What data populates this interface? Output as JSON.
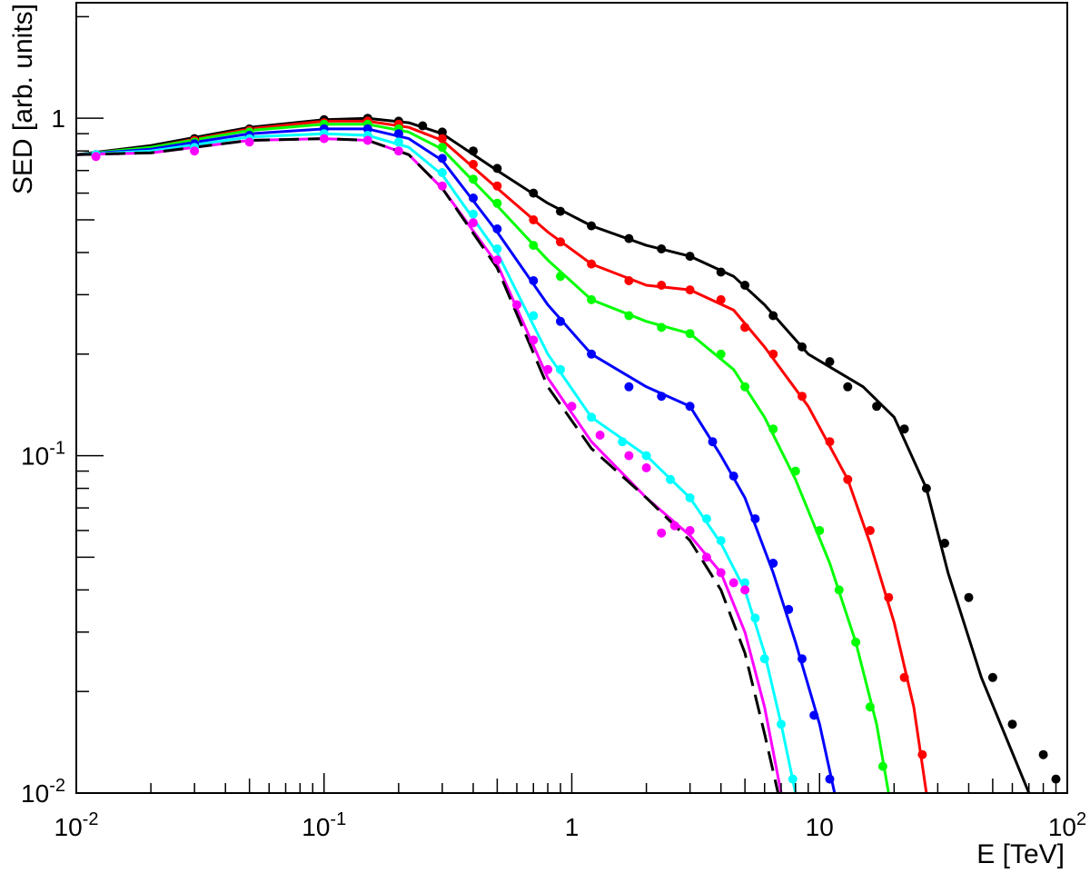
{
  "chart_data": {
    "type": "scatter",
    "xlabel": "E [TeV]",
    "ylabel": "SED [arb. units]",
    "x_scale": "log",
    "y_scale": "log",
    "xlim": [
      0.01,
      100
    ],
    "ylim": [
      0.01,
      2.2
    ],
    "grid": false,
    "legend": "none",
    "x_ticks": [
      {
        "value": 0.01,
        "base": "10",
        "exp": "-2"
      },
      {
        "value": 0.1,
        "base": "10",
        "exp": "-1"
      },
      {
        "value": 1,
        "base": "1",
        "exp": ""
      },
      {
        "value": 10,
        "base": "10",
        "exp": ""
      },
      {
        "value": 100,
        "base": "10",
        "exp": "2"
      }
    ],
    "y_ticks": [
      {
        "value": 0.01,
        "base": "10",
        "exp": "-2"
      },
      {
        "value": 0.1,
        "base": "10",
        "exp": "-1"
      },
      {
        "value": 1,
        "base": "1",
        "exp": ""
      }
    ],
    "series": [
      {
        "color": "#000000",
        "line_style": "solid",
        "curve": [
          [
            0.01,
            0.78
          ],
          [
            0.02,
            0.83
          ],
          [
            0.05,
            0.94
          ],
          [
            0.1,
            0.99
          ],
          [
            0.15,
            1.0
          ],
          [
            0.22,
            0.97
          ],
          [
            0.3,
            0.9
          ],
          [
            0.5,
            0.7
          ],
          [
            0.8,
            0.56
          ],
          [
            1.2,
            0.48
          ],
          [
            2,
            0.42
          ],
          [
            3,
            0.39
          ],
          [
            4.5,
            0.34
          ],
          [
            6,
            0.28
          ],
          [
            9,
            0.2
          ],
          [
            15,
            0.16
          ],
          [
            20,
            0.13
          ],
          [
            27,
            0.08
          ],
          [
            33,
            0.045
          ],
          [
            45,
            0.022
          ],
          [
            70,
            0.01
          ]
        ],
        "points": [
          [
            0.012,
            0.78
          ],
          [
            0.03,
            0.87
          ],
          [
            0.05,
            0.93
          ],
          [
            0.1,
            0.99
          ],
          [
            0.15,
            1.0
          ],
          [
            0.2,
            0.98
          ],
          [
            0.25,
            0.95
          ],
          [
            0.3,
            0.91
          ],
          [
            0.4,
            0.8
          ],
          [
            0.5,
            0.71
          ],
          [
            0.7,
            0.6
          ],
          [
            0.9,
            0.53
          ],
          [
            1.2,
            0.48
          ],
          [
            1.7,
            0.44
          ],
          [
            2.3,
            0.41
          ],
          [
            3,
            0.39
          ],
          [
            4,
            0.35
          ],
          [
            5,
            0.32
          ],
          [
            6.5,
            0.26
          ],
          [
            8.5,
            0.21
          ],
          [
            11,
            0.19
          ],
          [
            13,
            0.16
          ],
          [
            17,
            0.14
          ],
          [
            22,
            0.12
          ],
          [
            27,
            0.08
          ],
          [
            32,
            0.055
          ],
          [
            40,
            0.038
          ],
          [
            50,
            0.022
          ],
          [
            60,
            0.016
          ],
          [
            80,
            0.013
          ],
          [
            90,
            0.011
          ]
        ]
      },
      {
        "color": "#ff0000",
        "line_style": "solid",
        "curve": [
          [
            0.01,
            0.78
          ],
          [
            0.02,
            0.82
          ],
          [
            0.05,
            0.93
          ],
          [
            0.1,
            0.98
          ],
          [
            0.15,
            0.98
          ],
          [
            0.22,
            0.94
          ],
          [
            0.3,
            0.86
          ],
          [
            0.5,
            0.62
          ],
          [
            0.8,
            0.46
          ],
          [
            1.2,
            0.37
          ],
          [
            2,
            0.32
          ],
          [
            3,
            0.31
          ],
          [
            4.5,
            0.27
          ],
          [
            6,
            0.21
          ],
          [
            9,
            0.14
          ],
          [
            13,
            0.085
          ],
          [
            16,
            0.055
          ],
          [
            20,
            0.032
          ],
          [
            24,
            0.018
          ],
          [
            27,
            0.01
          ]
        ],
        "points": [
          [
            0.012,
            0.78
          ],
          [
            0.03,
            0.86
          ],
          [
            0.05,
            0.92
          ],
          [
            0.1,
            0.97
          ],
          [
            0.15,
            0.98
          ],
          [
            0.2,
            0.96
          ],
          [
            0.3,
            0.87
          ],
          [
            0.4,
            0.73
          ],
          [
            0.5,
            0.63
          ],
          [
            0.7,
            0.5
          ],
          [
            0.9,
            0.43
          ],
          [
            1.2,
            0.37
          ],
          [
            1.7,
            0.33
          ],
          [
            2.3,
            0.32
          ],
          [
            3,
            0.31
          ],
          [
            4,
            0.29
          ],
          [
            5,
            0.24
          ],
          [
            6.5,
            0.2
          ],
          [
            8.5,
            0.15
          ],
          [
            11,
            0.11
          ],
          [
            13,
            0.085
          ],
          [
            16,
            0.06
          ],
          [
            19,
            0.038
          ],
          [
            22,
            0.022
          ],
          [
            26,
            0.013
          ]
        ]
      },
      {
        "color": "#00ff00",
        "line_style": "solid",
        "curve": [
          [
            0.01,
            0.78
          ],
          [
            0.02,
            0.82
          ],
          [
            0.05,
            0.92
          ],
          [
            0.1,
            0.96
          ],
          [
            0.15,
            0.96
          ],
          [
            0.22,
            0.91
          ],
          [
            0.3,
            0.81
          ],
          [
            0.5,
            0.55
          ],
          [
            0.8,
            0.38
          ],
          [
            1.2,
            0.29
          ],
          [
            2,
            0.25
          ],
          [
            3,
            0.23
          ],
          [
            4.5,
            0.18
          ],
          [
            6,
            0.13
          ],
          [
            8,
            0.085
          ],
          [
            11,
            0.048
          ],
          [
            14,
            0.028
          ],
          [
            17,
            0.016
          ],
          [
            19,
            0.01
          ]
        ],
        "points": [
          [
            0.012,
            0.78
          ],
          [
            0.03,
            0.85
          ],
          [
            0.05,
            0.91
          ],
          [
            0.1,
            0.96
          ],
          [
            0.15,
            0.96
          ],
          [
            0.2,
            0.93
          ],
          [
            0.3,
            0.82
          ],
          [
            0.4,
            0.66
          ],
          [
            0.5,
            0.56
          ],
          [
            0.7,
            0.42
          ],
          [
            0.9,
            0.34
          ],
          [
            1.2,
            0.29
          ],
          [
            1.7,
            0.26
          ],
          [
            2.3,
            0.24
          ],
          [
            3,
            0.23
          ],
          [
            4,
            0.2
          ],
          [
            5,
            0.16
          ],
          [
            6.5,
            0.12
          ],
          [
            8,
            0.09
          ],
          [
            10,
            0.06
          ],
          [
            12,
            0.04
          ],
          [
            14,
            0.028
          ],
          [
            16,
            0.018
          ],
          [
            18,
            0.012
          ]
        ]
      },
      {
        "color": "#0000ff",
        "line_style": "solid",
        "curve": [
          [
            0.01,
            0.78
          ],
          [
            0.02,
            0.81
          ],
          [
            0.05,
            0.9
          ],
          [
            0.1,
            0.93
          ],
          [
            0.15,
            0.93
          ],
          [
            0.22,
            0.87
          ],
          [
            0.3,
            0.75
          ],
          [
            0.5,
            0.46
          ],
          [
            0.8,
            0.28
          ],
          [
            1.2,
            0.2
          ],
          [
            2,
            0.16
          ],
          [
            3,
            0.14
          ],
          [
            4,
            0.1
          ],
          [
            5,
            0.075
          ],
          [
            6.5,
            0.045
          ],
          [
            8,
            0.028
          ],
          [
            10,
            0.016
          ],
          [
            11.5,
            0.01
          ]
        ],
        "points": [
          [
            0.012,
            0.78
          ],
          [
            0.03,
            0.84
          ],
          [
            0.05,
            0.89
          ],
          [
            0.1,
            0.93
          ],
          [
            0.15,
            0.93
          ],
          [
            0.2,
            0.9
          ],
          [
            0.3,
            0.76
          ],
          [
            0.4,
            0.58
          ],
          [
            0.5,
            0.47
          ],
          [
            0.7,
            0.33
          ],
          [
            0.9,
            0.25
          ],
          [
            1.2,
            0.2
          ],
          [
            1.7,
            0.16
          ],
          [
            2.3,
            0.15
          ],
          [
            3,
            0.14
          ],
          [
            3.7,
            0.11
          ],
          [
            4.5,
            0.087
          ],
          [
            5.5,
            0.065
          ],
          [
            6.5,
            0.048
          ],
          [
            7.5,
            0.035
          ],
          [
            8.5,
            0.025
          ],
          [
            9.5,
            0.017
          ],
          [
            11,
            0.011
          ]
        ]
      },
      {
        "color": "#00ffff",
        "line_style": "solid",
        "curve": [
          [
            0.01,
            0.78
          ],
          [
            0.02,
            0.8
          ],
          [
            0.05,
            0.88
          ],
          [
            0.1,
            0.9
          ],
          [
            0.15,
            0.89
          ],
          [
            0.22,
            0.82
          ],
          [
            0.3,
            0.68
          ],
          [
            0.5,
            0.4
          ],
          [
            0.8,
            0.2
          ],
          [
            1.2,
            0.13
          ],
          [
            2,
            0.1
          ],
          [
            3,
            0.075
          ],
          [
            4,
            0.055
          ],
          [
            5,
            0.04
          ],
          [
            6,
            0.026
          ],
          [
            7,
            0.016
          ],
          [
            8,
            0.01
          ]
        ],
        "points": [
          [
            0.012,
            0.78
          ],
          [
            0.03,
            0.82
          ],
          [
            0.05,
            0.87
          ],
          [
            0.1,
            0.9
          ],
          [
            0.15,
            0.89
          ],
          [
            0.2,
            0.85
          ],
          [
            0.3,
            0.69
          ],
          [
            0.4,
            0.52
          ],
          [
            0.5,
            0.41
          ],
          [
            0.7,
            0.26
          ],
          [
            0.9,
            0.18
          ],
          [
            1.2,
            0.13
          ],
          [
            1.6,
            0.11
          ],
          [
            2,
            0.1
          ],
          [
            2.5,
            0.085
          ],
          [
            3,
            0.075
          ],
          [
            3.5,
            0.065
          ],
          [
            4,
            0.056
          ],
          [
            5,
            0.042
          ],
          [
            5.5,
            0.033
          ],
          [
            6,
            0.025
          ],
          [
            7,
            0.016
          ],
          [
            7.8,
            0.011
          ]
        ]
      },
      {
        "color": "#ff00ff",
        "line_style": "solid",
        "curve": [
          [
            0.01,
            0.78
          ],
          [
            0.02,
            0.79
          ],
          [
            0.05,
            0.86
          ],
          [
            0.1,
            0.87
          ],
          [
            0.15,
            0.86
          ],
          [
            0.22,
            0.78
          ],
          [
            0.3,
            0.62
          ],
          [
            0.5,
            0.37
          ],
          [
            0.8,
            0.17
          ],
          [
            1.2,
            0.11
          ],
          [
            2,
            0.075
          ],
          [
            3,
            0.058
          ],
          [
            4,
            0.045
          ],
          [
            5,
            0.03
          ],
          [
            6,
            0.018
          ],
          [
            7,
            0.01
          ]
        ],
        "points": [
          [
            0.012,
            0.77
          ],
          [
            0.03,
            0.8
          ],
          [
            0.05,
            0.85
          ],
          [
            0.1,
            0.87
          ],
          [
            0.15,
            0.86
          ],
          [
            0.2,
            0.8
          ],
          [
            0.3,
            0.63
          ],
          [
            0.4,
            0.49
          ],
          [
            0.5,
            0.38
          ],
          [
            0.6,
            0.28
          ],
          [
            0.7,
            0.22
          ],
          [
            0.8,
            0.18
          ],
          [
            1,
            0.14
          ],
          [
            1.3,
            0.115
          ],
          [
            1.7,
            0.1
          ],
          [
            2,
            0.092
          ],
          [
            2.3,
            0.059
          ],
          [
            2.6,
            0.062
          ],
          [
            3,
            0.06
          ],
          [
            3.5,
            0.05
          ],
          [
            4,
            0.045
          ],
          [
            4.5,
            0.042
          ],
          [
            5,
            0.04
          ]
        ]
      },
      {
        "color": "#000000",
        "line_style": "dashed",
        "curve": [
          [
            0.01,
            0.78
          ],
          [
            0.02,
            0.79
          ],
          [
            0.05,
            0.86
          ],
          [
            0.1,
            0.87
          ],
          [
            0.15,
            0.86
          ],
          [
            0.22,
            0.78
          ],
          [
            0.3,
            0.62
          ],
          [
            0.5,
            0.36
          ],
          [
            0.8,
            0.16
          ],
          [
            1.2,
            0.105
          ],
          [
            2,
            0.075
          ],
          [
            3,
            0.056
          ],
          [
            4,
            0.04
          ],
          [
            5,
            0.026
          ],
          [
            6,
            0.015
          ],
          [
            6.8,
            0.01
          ]
        ],
        "points": []
      }
    ]
  }
}
